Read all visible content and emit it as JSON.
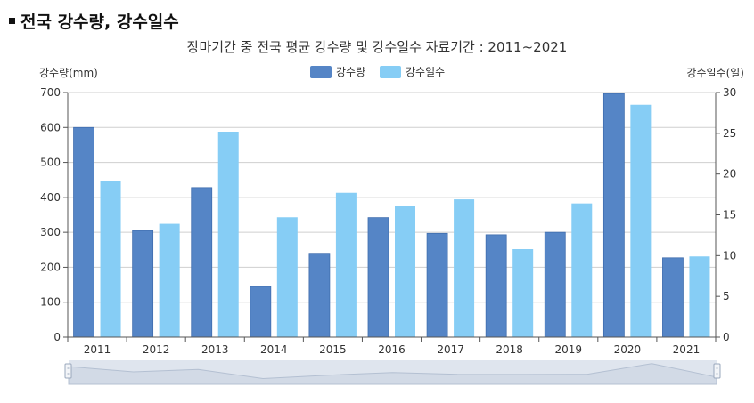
{
  "page": {
    "heading": "전국 강수량, 강수일수"
  },
  "chart_data": {
    "type": "bar",
    "title": "장마기간 중 전국 평균 강수량 및 강수일수 자료기간 : 2011~2021",
    "categories": [
      "2011",
      "2012",
      "2013",
      "2014",
      "2015",
      "2016",
      "2017",
      "2018",
      "2019",
      "2020",
      "2021"
    ],
    "series": [
      {
        "name": "강수량",
        "axis": "left",
        "color": "#5585C6",
        "values": [
          600,
          305,
          428,
          145,
          240,
          342,
          297,
          293,
          300,
          697,
          227
        ]
      },
      {
        "name": "강수일수",
        "axis": "right",
        "color": "#86CDF5",
        "values": [
          19.1,
          13.9,
          25.2,
          14.7,
          17.7,
          16.1,
          16.9,
          10.8,
          16.4,
          28.5,
          9.9
        ]
      }
    ],
    "ylabel_left": "강수량(mm)",
    "ylabel_right": "강수일수(일)",
    "ylim_left": [
      0,
      700
    ],
    "ylim_right": [
      0,
      30
    ],
    "yticks_left": [
      0,
      100,
      200,
      300,
      400,
      500,
      600,
      700
    ],
    "yticks_right": [
      0,
      5,
      10,
      15,
      20,
      25,
      30
    ],
    "legend": {
      "position": "top-center",
      "entries": [
        "강수량",
        "강수일수"
      ]
    },
    "grid": true,
    "navigator": {
      "values": [
        0.74,
        0.52,
        0.62,
        0.24,
        0.38,
        0.49,
        0.42,
        0.41,
        0.42,
        0.86,
        0.3
      ],
      "color": "#D4DCE8"
    }
  }
}
